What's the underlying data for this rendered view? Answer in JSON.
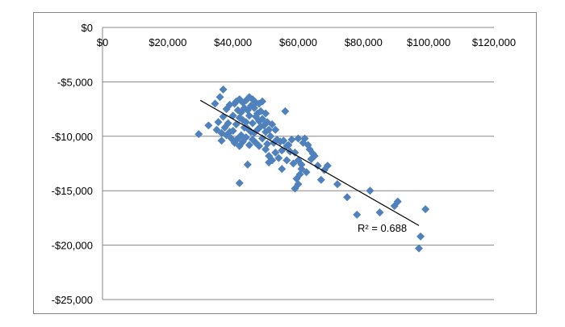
{
  "chart_data": {
    "type": "scatter",
    "title": "",
    "xlabel": "",
    "ylabel": "",
    "xlim": [
      0,
      120000
    ],
    "ylim": [
      -25000,
      0
    ],
    "x_ticks": [
      0,
      20000,
      40000,
      60000,
      80000,
      100000,
      120000
    ],
    "x_tick_labels": [
      "$0",
      "$20,000",
      "$40,000",
      "$60,000",
      "$80,000",
      "$100,000",
      "$120,000"
    ],
    "y_ticks": [
      0,
      -5000,
      -10000,
      -15000,
      -20000,
      -25000
    ],
    "y_tick_labels": [
      "$0",
      "-$5,000",
      "-$10,000",
      "-$15,000",
      "-$20,000",
      "-$25,000"
    ],
    "x_axis_position": "top",
    "grid": "horizontal",
    "legend": "none",
    "marker": "diamond",
    "marker_color": "#4f81bd",
    "trendline_color": "#000000",
    "trendline": {
      "type": "linear",
      "x": [
        30000,
        97000
      ],
      "y": [
        -6700,
        -18200
      ],
      "r2_label": "R² = 0.688"
    },
    "series": [
      {
        "x": [
          29500,
          32500,
          34500,
          35000,
          35500,
          36000,
          36500,
          37000,
          37000,
          37500,
          38000,
          38000,
          38500,
          39000,
          39000,
          39500,
          40000,
          40000,
          40500,
          40500,
          41000,
          41000,
          41500,
          41500,
          42000,
          42000,
          42000,
          42500,
          42500,
          43000,
          43000,
          43000,
          43500,
          43500,
          44000,
          44000,
          44000,
          44500,
          44500,
          45000,
          45000,
          45000,
          45500,
          45500,
          46000,
          46000,
          46000,
          46500,
          46500,
          47000,
          47000,
          47000,
          47500,
          47500,
          48000,
          48000,
          48000,
          48500,
          48500,
          49000,
          49000,
          49000,
          49500,
          50000,
          50000,
          50000,
          50500,
          50500,
          51000,
          51000,
          51500,
          52000,
          52000,
          52500,
          53000,
          53000,
          53500,
          54000,
          54500,
          55000,
          55500,
          56000,
          56500,
          57000,
          57500,
          58000,
          58500,
          59000,
          59000,
          59500,
          60000,
          60000,
          60500,
          61000,
          61000,
          61500,
          62000,
          62500,
          63000,
          63500,
          64000,
          64500,
          65000,
          66000,
          67000,
          68000,
          69000,
          72000,
          75000,
          78000,
          82000,
          85000,
          89500,
          90500,
          97000,
          97500,
          99000,
          42000,
          44500,
          56500,
          36500,
          51000,
          60000,
          55000
        ],
        "y": [
          -9800,
          -9000,
          -7000,
          -9400,
          -8700,
          -6400,
          -9700,
          -5700,
          -8200,
          -9200,
          -7500,
          -9900,
          -8800,
          -7100,
          -9600,
          -10200,
          -8100,
          -9500,
          -7000,
          -10600,
          -6800,
          -8900,
          -7600,
          -10200,
          -6600,
          -8300,
          -10900,
          -7800,
          -9900,
          -6900,
          -8500,
          -10500,
          -7400,
          -9200,
          -6700,
          -8700,
          -10100,
          -7600,
          -9300,
          -6400,
          -8100,
          -10800,
          -7200,
          -9600,
          -6600,
          -8800,
          -10300,
          -7400,
          -9700,
          -6900,
          -8200,
          -10600,
          -7900,
          -9400,
          -7000,
          -8600,
          -10900,
          -7700,
          -9100,
          -6800,
          -8400,
          -10200,
          -9000,
          -7900,
          -9600,
          -11200,
          -8700,
          -10700,
          -9400,
          -11800,
          -10000,
          -8900,
          -12200,
          -10600,
          -9400,
          -11500,
          -10300,
          -12000,
          -10500,
          -11300,
          -10400,
          -7700,
          -10900,
          -10800,
          -11400,
          -10300,
          -12500,
          -11500,
          -14800,
          -13900,
          -10200,
          -14400,
          -13500,
          -12600,
          -13000,
          -10600,
          -10200,
          -13300,
          -10800,
          -11200,
          -12100,
          -11600,
          -11800,
          -12700,
          -14000,
          -13100,
          -12700,
          -14400,
          -15600,
          -17200,
          -15000,
          -17000,
          -16400,
          -16000,
          -20300,
          -19200,
          -16700,
          -14300,
          -12600,
          -12200,
          -10400,
          -12400,
          -12200,
          -13000
        ]
      }
    ]
  }
}
